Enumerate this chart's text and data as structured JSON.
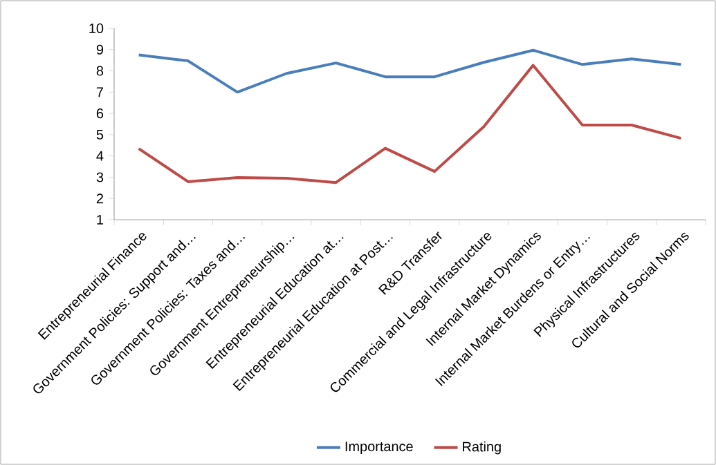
{
  "chart_data": {
    "type": "line",
    "categories": [
      "Entrepreneurial Finance",
      "Government Policies: Support and…",
      "Government Policies: Taxes and…",
      "Government Entrepreneurship…",
      "Entrepreneurial Education at…",
      "Entrepreneurial Education at Post…",
      "R&D Transfer",
      "Commercial and Legal Infrastructure",
      "Internal Market Dynamics",
      "Internal Market Burdens or Entry…",
      "Physical Infrastructures",
      "Cultural and Social Norms"
    ],
    "series": [
      {
        "name": "Importance",
        "color": "#4a7ebb",
        "values": [
          8.75,
          8.47,
          7.0,
          7.88,
          8.37,
          7.72,
          7.72,
          8.4,
          8.97,
          8.3,
          8.56,
          8.3
        ]
      },
      {
        "name": "Rating",
        "color": "#be4b48",
        "values": [
          4.34,
          2.79,
          2.98,
          2.95,
          2.75,
          4.36,
          3.27,
          5.38,
          8.26,
          5.45,
          5.45,
          4.83
        ]
      }
    ],
    "ylim": [
      1,
      10
    ],
    "yticks": [
      1,
      2,
      3,
      4,
      5,
      6,
      7,
      8,
      9,
      10
    ],
    "legend": "bottom",
    "marker": "none"
  }
}
